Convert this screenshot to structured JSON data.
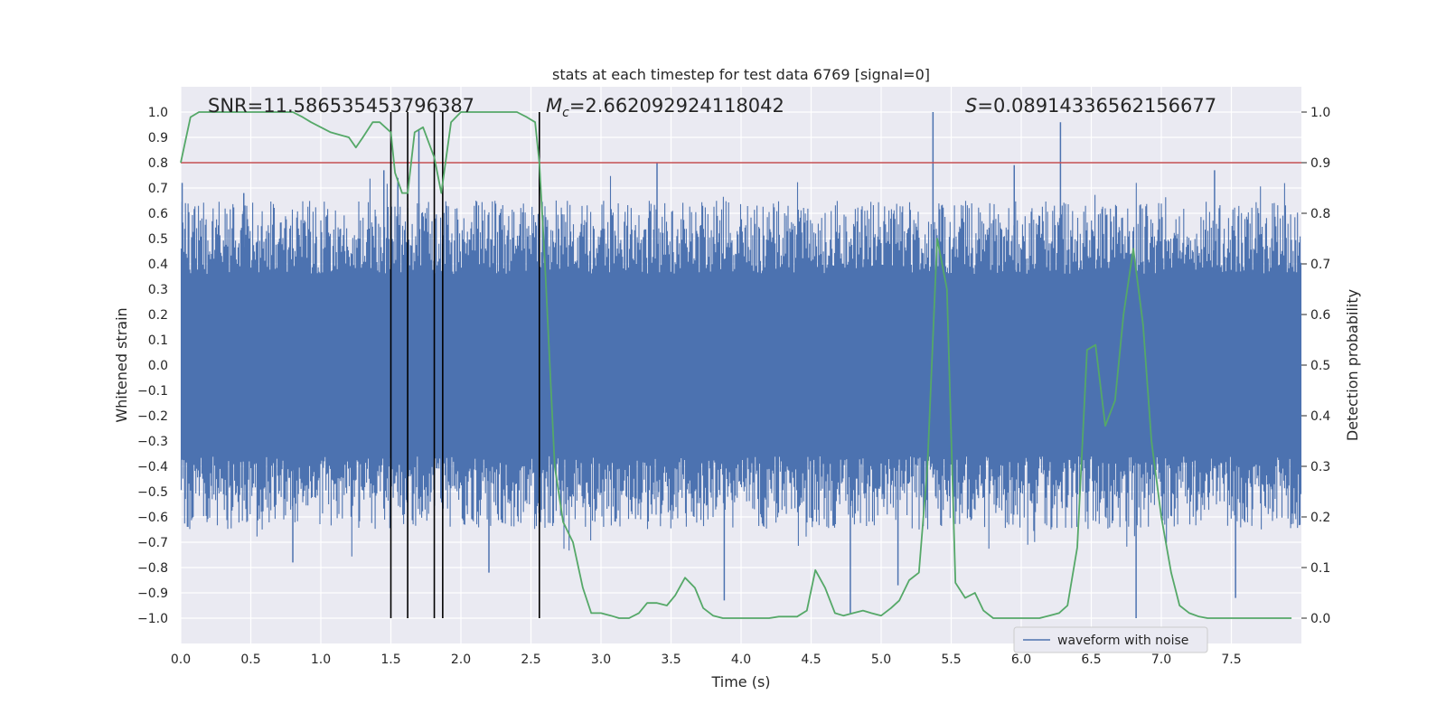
{
  "chart_data": {
    "type": "line",
    "title": "stats at each timestep for test data 6769 [signal=0]",
    "xlabel": "Time (s)",
    "ylabel": "Whitened strain",
    "y2label": "Detection probability",
    "xlim": [
      0,
      8
    ],
    "ylim": [
      -1.1,
      1.1
    ],
    "y2lim": [
      -0.05,
      1.05
    ],
    "xticks": [
      0.0,
      0.5,
      1.0,
      1.5,
      2.0,
      2.5,
      3.0,
      3.5,
      4.0,
      4.5,
      5.0,
      5.5,
      6.0,
      6.5,
      7.0,
      7.5
    ],
    "xtick_labels": [
      "0.0",
      "0.5",
      "1.0",
      "1.5",
      "2.0",
      "2.5",
      "3.0",
      "3.5",
      "4.0",
      "4.5",
      "5.0",
      "5.5",
      "6.0",
      "6.5",
      "7.0",
      "7.5"
    ],
    "yticks": [
      1.0,
      0.9,
      0.8,
      0.7,
      0.6,
      0.5,
      0.4,
      0.3,
      0.2,
      0.1,
      0.0,
      -0.1,
      -0.2,
      -0.3,
      -0.4,
      -0.5,
      -0.6,
      -0.7,
      -0.8,
      -0.9,
      -1.0
    ],
    "ytick_labels": [
      "1.0",
      "0.9",
      "0.8",
      "0.7",
      "0.6",
      "0.5",
      "0.4",
      "0.3",
      "0.2",
      "0.1",
      "0.0",
      "−0.1",
      "−0.2",
      "−0.3",
      "−0.4",
      "−0.5",
      "−0.6",
      "−0.7",
      "−0.8",
      "−0.9",
      "−1.0"
    ],
    "y2ticks": [
      1.0,
      0.9,
      0.8,
      0.7,
      0.6,
      0.5,
      0.4,
      0.3,
      0.2,
      0.1,
      0.0
    ],
    "y2tick_labels": [
      "1.0",
      "0.9",
      "0.8",
      "0.7",
      "0.6",
      "0.5",
      "0.4",
      "0.3",
      "0.2",
      "0.1",
      "0.0"
    ],
    "annotations": {
      "snr": "SNR=11.586535453796387",
      "mc_symbol": "M",
      "mc_sub": "c",
      "mc_value": "=2.662092924118042",
      "s_symbol": "S",
      "s_value": "=0.08914336562156677"
    },
    "legend": {
      "label": "waveform with noise",
      "location": "lower-right"
    },
    "threshold_line": {
      "y2": 0.9,
      "color": "#c44e52"
    },
    "vertical_markers_x": [
      1.5,
      1.62,
      1.81,
      1.87,
      2.56
    ],
    "marker_range_y": [
      -1.0,
      1.0
    ],
    "waveform": {
      "name": "waveform with noise",
      "color": "#4c72b0",
      "typical_peak": [
        0.45,
        0.65
      ],
      "spikes": [
        {
          "x": 0.01,
          "y": 0.72
        },
        {
          "x": 0.45,
          "y": 0.68
        },
        {
          "x": 1.45,
          "y": 0.77
        },
        {
          "x": 1.55,
          "y": 0.74
        },
        {
          "x": 1.7,
          "y": 0.93
        },
        {
          "x": 3.4,
          "y": 0.8
        },
        {
          "x": 5.37,
          "y": 1.0
        },
        {
          "x": 5.95,
          "y": 0.79
        },
        {
          "x": 6.28,
          "y": 0.96
        },
        {
          "x": 7.38,
          "y": 0.77
        },
        {
          "x": 3.88,
          "y": -0.93
        },
        {
          "x": 4.78,
          "y": -0.98
        },
        {
          "x": 6.82,
          "y": -1.0
        },
        {
          "x": 7.53,
          "y": -0.92
        },
        {
          "x": 0.8,
          "y": -0.78
        },
        {
          "x": 5.12,
          "y": -0.87
        },
        {
          "x": 2.2,
          "y": -0.82
        }
      ]
    },
    "series": [
      {
        "name": "Detection probability",
        "axis": "right",
        "color": "#55a868",
        "x": [
          0.0,
          0.07,
          0.13,
          0.2,
          0.27,
          0.33,
          0.4,
          0.47,
          0.53,
          0.6,
          0.67,
          0.73,
          0.8,
          0.87,
          0.93,
          1.0,
          1.07,
          1.2,
          1.25,
          1.3,
          1.37,
          1.42,
          1.5,
          1.53,
          1.58,
          1.62,
          1.67,
          1.73,
          1.81,
          1.86,
          1.93,
          2.0,
          2.07,
          2.13,
          2.2,
          2.27,
          2.33,
          2.4,
          2.47,
          2.53,
          2.56,
          2.6,
          2.67,
          2.73,
          2.8,
          2.87,
          2.93,
          3.0,
          3.07,
          3.13,
          3.2,
          3.27,
          3.33,
          3.4,
          3.47,
          3.53,
          3.6,
          3.67,
          3.73,
          3.8,
          3.87,
          3.93,
          4.0,
          4.07,
          4.13,
          4.2,
          4.27,
          4.33,
          4.4,
          4.47,
          4.53,
          4.6,
          4.67,
          4.73,
          4.8,
          4.87,
          4.93,
          5.0,
          5.07,
          5.13,
          5.2,
          5.27,
          5.33,
          5.4,
          5.47,
          5.53,
          5.6,
          5.67,
          5.73,
          5.8,
          5.87,
          5.93,
          6.0,
          6.07,
          6.13,
          6.2,
          6.27,
          6.33,
          6.4,
          6.47,
          6.53,
          6.6,
          6.67,
          6.73,
          6.8,
          6.87,
          6.93,
          7.0,
          7.07,
          7.13,
          7.2,
          7.27,
          7.33,
          7.4,
          7.47,
          7.53,
          7.6,
          7.67,
          7.73,
          7.8,
          7.87,
          7.93
        ],
        "y": [
          0.9,
          0.99,
          1.0,
          1.0,
          1.0,
          1.0,
          1.0,
          1.0,
          1.0,
          1.0,
          1.0,
          1.0,
          1.0,
          0.99,
          0.98,
          0.97,
          0.96,
          0.95,
          0.93,
          0.95,
          0.98,
          0.98,
          0.96,
          0.88,
          0.84,
          0.84,
          0.96,
          0.97,
          0.91,
          0.84,
          0.98,
          1.0,
          1.0,
          1.0,
          1.0,
          1.0,
          1.0,
          1.0,
          0.99,
          0.98,
          0.9,
          0.7,
          0.3,
          0.19,
          0.15,
          0.06,
          0.01,
          0.01,
          0.005,
          0.0,
          0.0,
          0.01,
          0.03,
          0.03,
          0.025,
          0.045,
          0.08,
          0.06,
          0.02,
          0.005,
          0.0,
          0.0,
          0.0,
          0.0,
          0.0,
          0.0,
          0.003,
          0.003,
          0.003,
          0.015,
          0.095,
          0.06,
          0.01,
          0.005,
          0.01,
          0.015,
          0.01,
          0.005,
          0.02,
          0.035,
          0.075,
          0.09,
          0.3,
          0.75,
          0.65,
          0.07,
          0.04,
          0.05,
          0.015,
          0.0,
          0.0,
          0.0,
          0.0,
          0.0,
          0.0,
          0.005,
          0.01,
          0.025,
          0.14,
          0.53,
          0.54,
          0.38,
          0.43,
          0.6,
          0.73,
          0.58,
          0.35,
          0.2,
          0.09,
          0.025,
          0.01,
          0.003,
          0.0,
          0.0,
          0.0,
          0.0,
          0.0,
          0.0,
          0.0,
          0.0,
          0.0,
          0.0
        ]
      }
    ]
  }
}
